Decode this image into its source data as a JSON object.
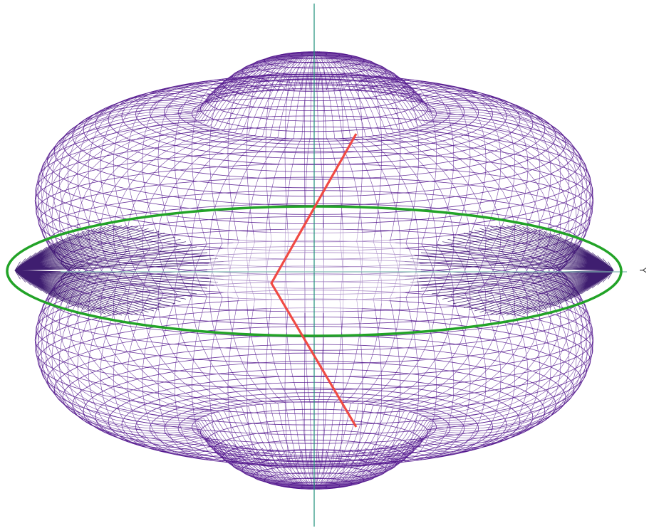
{
  "scene": {
    "axis_label_y": "Y"
  },
  "colors": {
    "background": "#ffffff",
    "mesh": "#4b0c88",
    "mesh_dense": "#2a0660",
    "vertical_axis": "#1f8f7a",
    "horizontal_axis": "#7fb8b0",
    "equator_ring": "#22a327",
    "vector_path": "#f04a44"
  }
}
